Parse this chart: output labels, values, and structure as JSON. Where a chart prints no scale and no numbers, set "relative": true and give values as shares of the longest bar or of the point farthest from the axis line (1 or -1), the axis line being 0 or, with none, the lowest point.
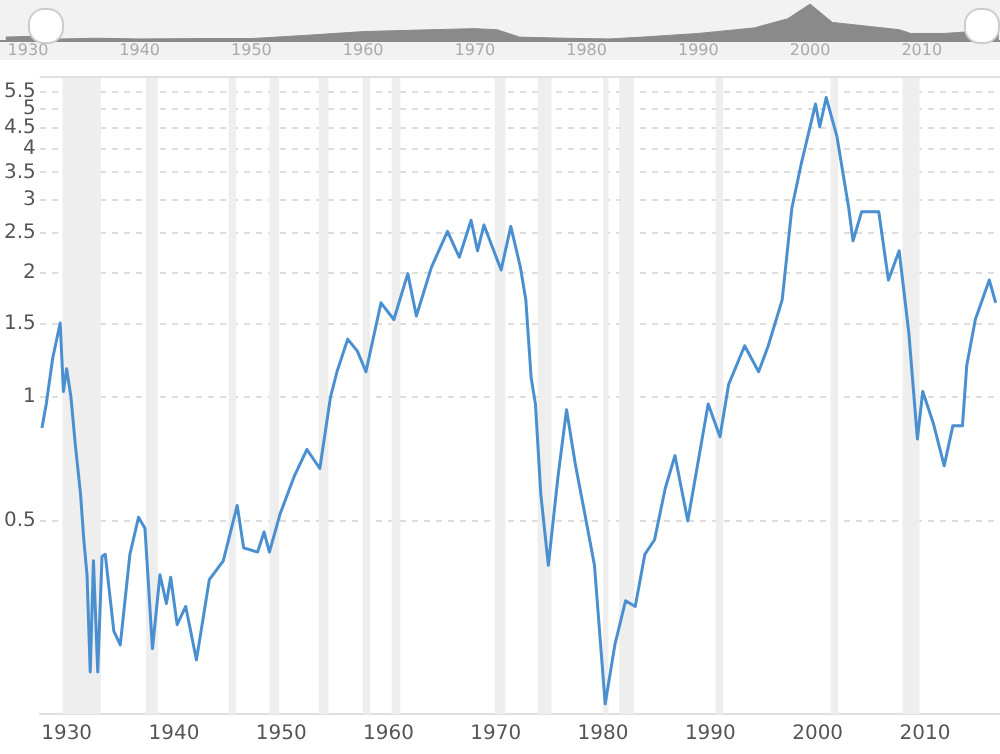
{
  "chart_data": [
    {
      "type": "area",
      "relative": true,
      "color": "#8a8a8a",
      "x": [
        1928,
        1930,
        1933,
        1936,
        1940,
        1945,
        1950,
        1955,
        1960,
        1966,
        1970,
        1972,
        1974,
        1978,
        1982,
        1985,
        1990,
        1995,
        1998,
        2000,
        2002,
        2005,
        2008,
        2009,
        2012,
        2016.9
      ],
      "values": [
        0.1,
        0.12,
        0.05,
        0.07,
        0.05,
        0.06,
        0.06,
        0.15,
        0.25,
        0.3,
        0.33,
        0.3,
        0.1,
        0.07,
        0.05,
        0.1,
        0.2,
        0.35,
        0.6,
        1,
        0.5,
        0.4,
        0.3,
        0.2,
        0.2,
        0.3
      ],
      "xlim": [
        1927.5,
        2017
      ],
      "xticks": [
        1930,
        1940,
        1950,
        1960,
        1970,
        1980,
        1990,
        2000,
        2010
      ]
    },
    {
      "type": "line",
      "log": true,
      "grid": "y",
      "color": "#4a8fcf",
      "xlim": [
        1927.5,
        2017
      ],
      "xticks": [
        1930,
        1940,
        1950,
        1960,
        1970,
        1980,
        1990,
        2000,
        2010
      ],
      "ylim": [
        0.17,
        6
      ],
      "yticks": [
        0.5,
        1,
        1.5,
        2,
        2.5,
        3,
        3.5,
        4,
        4.5,
        5,
        5.5
      ],
      "x": [
        1927.7,
        1928.1,
        1928.7,
        1929.4,
        1929.7,
        1930,
        1930.4,
        1930.8,
        1931.3,
        1931.6,
        1931.9,
        1932.2,
        1932.5,
        1932.9,
        1933.3,
        1933.6,
        1934.4,
        1935,
        1935.9,
        1936.7,
        1937.3,
        1938,
        1938.7,
        1939.3,
        1939.7,
        1940.3,
        1941.1,
        1942.1,
        1943.3,
        1944.6,
        1945.9,
        1946.5,
        1947.8,
        1948.4,
        1948.9,
        1949.9,
        1951.2,
        1952.4,
        1953.6,
        1954.6,
        1955.2,
        1956.2,
        1957.1,
        1957.9,
        1959.3,
        1960.5,
        1961.8,
        1962.6,
        1964,
        1965.5,
        1966.6,
        1967.7,
        1968.3,
        1968.9,
        1970.5,
        1971.4,
        1972.3,
        1972.8,
        1973.3,
        1973.7,
        1974.2,
        1974.9,
        1975.8,
        1976.6,
        1977.4,
        1978.3,
        1979.2,
        1980.2,
        1981.1,
        1982.1,
        1983,
        1983.9,
        1984.8,
        1985.8,
        1986.7,
        1987.9,
        1989.8,
        1990.9,
        1991.7,
        1993.2,
        1994.5,
        1995.4,
        1996.7,
        1997.6,
        1998.5,
        1999.8,
        2000.2,
        2000.8,
        2001.8,
        2002.9,
        2003.3,
        2004.1,
        2005.7,
        2006.6,
        2007.6,
        2008.5,
        2009.3,
        2009.8,
        2010.8,
        2011.8,
        2012.6,
        2013.5,
        2013.9,
        2014.7,
        2016,
        2016.6
      ],
      "values": [
        0.84,
        0.96,
        1.24,
        1.51,
        1.03,
        1.17,
        1.0,
        0.77,
        0.58,
        0.45,
        0.37,
        0.215,
        0.4,
        0.215,
        0.41,
        0.415,
        0.27,
        0.25,
        0.415,
        0.51,
        0.48,
        0.245,
        0.37,
        0.315,
        0.365,
        0.28,
        0.31,
        0.23,
        0.36,
        0.4,
        0.545,
        0.43,
        0.42,
        0.47,
        0.42,
        0.52,
        0.64,
        0.745,
        0.67,
        1.0,
        1.15,
        1.38,
        1.29,
        1.15,
        1.69,
        1.54,
        1.99,
        1.57,
        2.06,
        2.52,
        2.18,
        2.68,
        2.26,
        2.61,
        2.03,
        2.59,
        2.06,
        1.72,
        1.11,
        0.96,
        0.58,
        0.39,
        0.64,
        0.93,
        0.69,
        0.52,
        0.39,
        0.18,
        0.25,
        0.32,
        0.31,
        0.415,
        0.45,
        0.6,
        0.72,
        0.5,
        0.96,
        0.8,
        1.07,
        1.33,
        1.15,
        1.33,
        1.72,
        2.87,
        3.7,
        5.13,
        4.52,
        5.32,
        4.28,
        2.87,
        2.39,
        2.81,
        2.81,
        1.92,
        2.26,
        1.43,
        0.79,
        1.03,
        0.86,
        0.68,
        0.85,
        0.85,
        1.19,
        1.54,
        1.92,
        1.69
      ],
      "bands": [
        {
          "axis": "x",
          "from": 1929.6,
          "to": 1933.2,
          "color": "#eeeeee"
        },
        {
          "axis": "x",
          "from": 1937.4,
          "to": 1938.5,
          "color": "#eeeeee"
        },
        {
          "axis": "x",
          "from": 1945.1,
          "to": 1945.8,
          "color": "#eeeeee"
        },
        {
          "axis": "x",
          "from": 1948.9,
          "to": 1949.8,
          "color": "#eeeeee"
        },
        {
          "axis": "x",
          "from": 1953.5,
          "to": 1954.4,
          "color": "#eeeeee"
        },
        {
          "axis": "x",
          "from": 1957.6,
          "to": 1958.3,
          "color": "#eeeeee"
        },
        {
          "axis": "x",
          "from": 1960.3,
          "to": 1961.1,
          "color": "#eeeeee"
        },
        {
          "axis": "x",
          "from": 1969.9,
          "to": 1970.9,
          "color": "#eeeeee"
        },
        {
          "axis": "x",
          "from": 1973.9,
          "to": 1975.2,
          "color": "#eeeeee"
        },
        {
          "axis": "x",
          "from": 1980.0,
          "to": 1980.5,
          "color": "#eeeeee"
        },
        {
          "axis": "x",
          "from": 1981.5,
          "to": 1982.9,
          "color": "#eeeeee"
        },
        {
          "axis": "x",
          "from": 1990.5,
          "to": 1991.2,
          "color": "#eeeeee"
        },
        {
          "axis": "x",
          "from": 2001.2,
          "to": 2001.9,
          "color": "#eeeeee"
        },
        {
          "axis": "x",
          "from": 2007.9,
          "to": 2009.5,
          "color": "#eeeeee"
        }
      ]
    }
  ]
}
